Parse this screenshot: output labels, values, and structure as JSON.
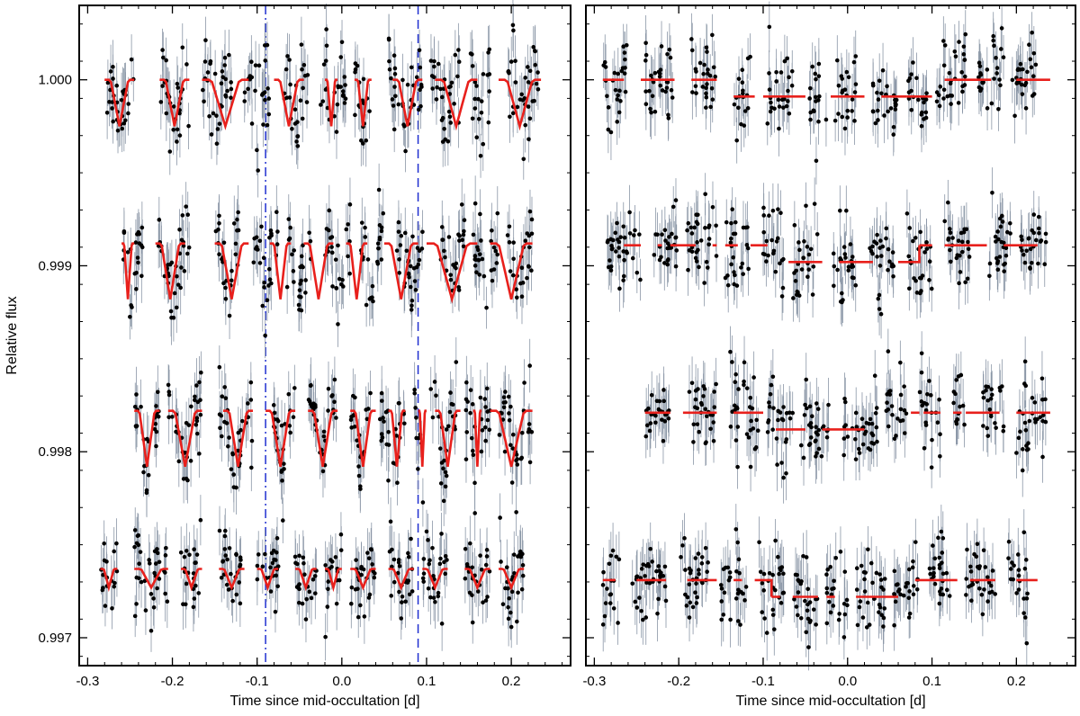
{
  "figure": {
    "ylabel": "Relative flux",
    "xlabel": "Time since mid-occultation [d]"
  },
  "colors": {
    "points": "#000000",
    "errorbars": "#8a96a6",
    "model": "#e8201c",
    "ingress_line": "#1f2fd0",
    "egress_line": "#1f2fd0"
  },
  "chart_data": [
    {
      "type": "scatter",
      "panel": "left",
      "xlabel": "Time since mid-occultation [d]",
      "ylabel": "Relative flux",
      "xlim": [
        -0.31,
        0.27
      ],
      "ylim": [
        0.99685,
        1.0004
      ],
      "xticks": [
        -0.3,
        -0.2,
        -0.1,
        0.0,
        0.1,
        0.2
      ],
      "xtick_labels": [
        "-0.3",
        "-0.2",
        "-0.1",
        "0.0",
        "0.1",
        "0.2"
      ],
      "yticks": [
        0.997,
        0.998,
        0.999,
        1.0
      ],
      "ytick_labels": [
        "0.997",
        "0.998",
        "0.999",
        "1.000"
      ],
      "vertical_lines": [
        {
          "x": -0.09,
          "style": "dash-dot"
        },
        {
          "x": 0.09,
          "style": "dashed"
        }
      ],
      "series": [
        {
          "offset": 1.0,
          "x_start": -0.28,
          "x_end": 0.235,
          "segments": [
            [
              -0.28,
              -0.245
            ],
            [
              -0.215,
              -0.18
            ],
            [
              -0.165,
              -0.13
            ],
            [
              -0.115,
              -0.085
            ],
            [
              -0.07,
              -0.04
            ],
            [
              -0.025,
              0.005
            ],
            [
              0.015,
              0.035
            ],
            [
              0.055,
              0.095
            ],
            [
              0.105,
              0.14
            ],
            [
              0.15,
              0.175
            ],
            [
              0.195,
              0.235
            ]
          ],
          "model_segments": [
            [
              -0.28,
              -0.245
            ],
            [
              -0.215,
              -0.18
            ],
            [
              -0.165,
              -0.11
            ],
            [
              -0.08,
              -0.045
            ],
            [
              -0.02,
              -0.005
            ],
            [
              0.015,
              0.035
            ],
            [
              0.06,
              0.095
            ],
            [
              0.11,
              0.16
            ],
            [
              0.185,
              0.235
            ]
          ],
          "model_dip_depth": 0.00025
        },
        {
          "offset": 0.99912,
          "x_start": -0.26,
          "x_end": 0.245,
          "segments": [
            [
              -0.26,
              -0.235
            ],
            [
              -0.22,
              -0.18
            ],
            [
              -0.15,
              -0.12
            ],
            [
              -0.105,
              -0.075
            ],
            [
              -0.065,
              -0.035
            ],
            [
              -0.02,
              0.01
            ],
            [
              0.02,
              0.05
            ],
            [
              0.065,
              0.1
            ],
            [
              0.115,
              0.145
            ],
            [
              0.155,
              0.185
            ],
            [
              0.195,
              0.225
            ]
          ],
          "model_segments": [
            [
              -0.26,
              -0.245
            ],
            [
              -0.22,
              -0.185
            ],
            [
              -0.15,
              -0.11
            ],
            [
              -0.085,
              -0.06
            ],
            [
              -0.045,
              -0.01
            ],
            [
              0.005,
              0.03
            ],
            [
              0.05,
              0.09
            ],
            [
              0.1,
              0.16
            ],
            [
              0.175,
              0.225
            ]
          ],
          "model_dip_depth": 0.0003
        },
        {
          "offset": 0.99822,
          "x_start": -0.245,
          "x_end": 0.25,
          "segments": [
            [
              -0.245,
              -0.215
            ],
            [
              -0.205,
              -0.165
            ],
            [
              -0.145,
              -0.105
            ],
            [
              -0.085,
              -0.055
            ],
            [
              -0.04,
              -0.005
            ],
            [
              0.01,
              0.035
            ],
            [
              0.045,
              0.075
            ],
            [
              0.085,
              0.095
            ],
            [
              0.105,
              0.135
            ],
            [
              0.145,
              0.175
            ],
            [
              0.185,
              0.225
            ]
          ],
          "model_segments": [
            [
              -0.245,
              -0.215
            ],
            [
              -0.205,
              -0.165
            ],
            [
              -0.14,
              -0.105
            ],
            [
              -0.09,
              -0.055
            ],
            [
              -0.04,
              -0.005
            ],
            [
              0.01,
              0.04
            ],
            [
              0.055,
              0.075
            ],
            [
              0.09,
              0.1
            ],
            [
              0.11,
              0.14
            ],
            [
              0.155,
              0.165
            ],
            [
              0.175,
              0.225
            ]
          ],
          "model_dip_depth": 0.0003
        },
        {
          "offset": 0.99737,
          "x_start": -0.285,
          "x_end": 0.24,
          "segments": [
            [
              -0.285,
              -0.265
            ],
            [
              -0.245,
              -0.205
            ],
            [
              -0.19,
              -0.165
            ],
            [
              -0.145,
              -0.115
            ],
            [
              -0.1,
              -0.075
            ],
            [
              -0.055,
              -0.03
            ],
            [
              -0.02,
              0.0
            ],
            [
              0.01,
              0.04
            ],
            [
              0.055,
              0.085
            ],
            [
              0.095,
              0.125
            ],
            [
              0.145,
              0.175
            ],
            [
              0.185,
              0.215
            ]
          ],
          "model_segments": [
            [
              -0.285,
              -0.265
            ],
            [
              -0.245,
              -0.205
            ],
            [
              -0.19,
              -0.165
            ],
            [
              -0.145,
              -0.115
            ],
            [
              -0.1,
              -0.075
            ],
            [
              -0.055,
              -0.03
            ],
            [
              -0.02,
              0.0
            ],
            [
              0.01,
              0.04
            ],
            [
              0.055,
              0.085
            ],
            [
              0.095,
              0.125
            ],
            [
              0.145,
              0.175
            ],
            [
              0.185,
              0.215
            ]
          ],
          "model_dip_depth": 0.0001
        }
      ]
    },
    {
      "type": "scatter",
      "panel": "right",
      "xlabel": "Time since mid-occultation [d]",
      "ylabel": "",
      "xlim": [
        -0.31,
        0.27
      ],
      "ylim": [
        0.99685,
        1.0004
      ],
      "xticks": [
        -0.3,
        -0.2,
        -0.1,
        0.0,
        0.1,
        0.2
      ],
      "xtick_labels": [
        "-0.3",
        "-0.2",
        "-0.1",
        "0.0",
        "0.1",
        "0.2"
      ],
      "yticks": [
        0.997,
        0.998,
        0.999,
        1.0
      ],
      "series": [
        {
          "offset": 1.0,
          "x_start": -0.29,
          "x_end": 0.225,
          "segments": [
            [
              -0.29,
              -0.26
            ],
            [
              -0.24,
              -0.205
            ],
            [
              -0.185,
              -0.155
            ],
            [
              -0.135,
              -0.115
            ],
            [
              -0.095,
              -0.065
            ],
            [
              -0.045,
              -0.025
            ],
            [
              -0.015,
              0.01
            ],
            [
              0.03,
              0.06
            ],
            [
              0.07,
              0.095
            ],
            [
              0.105,
              0.14
            ],
            [
              0.155,
              0.185
            ],
            [
              0.195,
              0.225
            ]
          ],
          "model_segments": [
            [
              -0.29,
              -0.265
            ],
            [
              -0.245,
              -0.205
            ],
            [
              -0.185,
              -0.155
            ],
            [
              -0.135,
              -0.11
            ],
            [
              -0.1,
              -0.05
            ],
            [
              -0.02,
              0.02
            ],
            [
              0.04,
              0.07
            ],
            [
              0.07,
              0.1
            ],
            [
              0.115,
              0.17
            ],
            [
              0.2,
              0.24
            ]
          ],
          "model_levels": [
            1.0,
            1.0,
            1.0,
            0.99991,
            0.99991,
            0.99991,
            0.99991,
            0.99991,
            1.0,
            1.0
          ]
        },
        {
          "offset": 0.99912,
          "x_start": -0.285,
          "x_end": 0.255,
          "segments": [
            [
              -0.285,
              -0.245
            ],
            [
              -0.23,
              -0.2
            ],
            [
              -0.19,
              -0.155
            ],
            [
              -0.145,
              -0.115
            ],
            [
              -0.1,
              -0.075
            ],
            [
              -0.065,
              -0.035
            ],
            [
              -0.02,
              0.01
            ],
            [
              0.025,
              0.055
            ],
            [
              0.07,
              0.1
            ],
            [
              0.115,
              0.145
            ],
            [
              0.165,
              0.195
            ],
            [
              0.205,
              0.235
            ]
          ],
          "model_segments": [
            [
              -0.265,
              -0.245
            ],
            [
              -0.225,
              -0.22
            ],
            [
              -0.21,
              -0.18
            ],
            [
              -0.16,
              -0.155
            ],
            [
              -0.145,
              -0.13
            ],
            [
              -0.115,
              -0.095
            ],
            [
              -0.07,
              -0.03
            ],
            [
              -0.01,
              0.03
            ],
            [
              0.06,
              0.085
            ],
            [
              0.085,
              0.1
            ],
            [
              0.115,
              0.165
            ],
            [
              0.185,
              0.225
            ]
          ],
          "model_levels": [
            0.99911,
            0.99911,
            0.99911,
            0.99911,
            0.99911,
            0.99911,
            0.99902,
            0.99902,
            0.99902,
            0.99911,
            0.99911,
            0.99911
          ]
        },
        {
          "offset": 0.99822,
          "x_start": -0.24,
          "x_end": 0.255,
          "segments": [
            [
              -0.24,
              -0.21
            ],
            [
              -0.19,
              -0.155
            ],
            [
              -0.14,
              -0.105
            ],
            [
              -0.095,
              -0.065
            ],
            [
              -0.055,
              -0.02
            ],
            [
              -0.005,
              0.035
            ],
            [
              0.045,
              0.07
            ],
            [
              0.085,
              0.11
            ],
            [
              0.125,
              0.14
            ],
            [
              0.16,
              0.185
            ],
            [
              0.2,
              0.235
            ]
          ],
          "model_segments": [
            [
              -0.24,
              -0.21
            ],
            [
              -0.195,
              -0.155
            ],
            [
              -0.135,
              -0.1
            ],
            [
              -0.085,
              -0.05
            ],
            [
              -0.03,
              0.02
            ],
            [
              0.075,
              0.085
            ],
            [
              0.09,
              0.11
            ],
            [
              0.125,
              0.135
            ],
            [
              0.14,
              0.18
            ],
            [
              0.2,
              0.24
            ]
          ],
          "model_levels": [
            0.99821,
            0.99821,
            0.99821,
            0.99812,
            0.99812,
            0.99821,
            0.99821,
            0.99821,
            0.99821,
            0.99821
          ]
        },
        {
          "offset": 0.99737,
          "x_start": -0.29,
          "x_end": 0.235,
          "segments": [
            [
              -0.29,
              -0.27
            ],
            [
              -0.255,
              -0.215
            ],
            [
              -0.2,
              -0.165
            ],
            [
              -0.15,
              -0.12
            ],
            [
              -0.105,
              -0.075
            ],
            [
              -0.065,
              -0.035
            ],
            [
              -0.025,
              0.0
            ],
            [
              0.01,
              0.045
            ],
            [
              0.055,
              0.085
            ],
            [
              0.095,
              0.125
            ],
            [
              0.14,
              0.175
            ],
            [
              0.19,
              0.215
            ]
          ],
          "model_segments": [
            [
              -0.29,
              -0.275
            ],
            [
              -0.25,
              -0.215
            ],
            [
              -0.19,
              -0.155
            ],
            [
              -0.135,
              -0.125
            ],
            [
              -0.11,
              -0.09
            ],
            [
              -0.09,
              -0.08
            ],
            [
              -0.065,
              -0.035
            ],
            [
              -0.025,
              -0.015
            ],
            [
              0.01,
              0.06
            ],
            [
              0.08,
              0.13
            ],
            [
              0.145,
              0.175
            ],
            [
              0.2,
              0.225
            ]
          ],
          "model_levels": [
            0.99731,
            0.99731,
            0.99731,
            0.99731,
            0.99731,
            0.99722,
            0.99722,
            0.99722,
            0.99722,
            0.99731,
            0.99731,
            0.99731
          ]
        }
      ]
    }
  ]
}
